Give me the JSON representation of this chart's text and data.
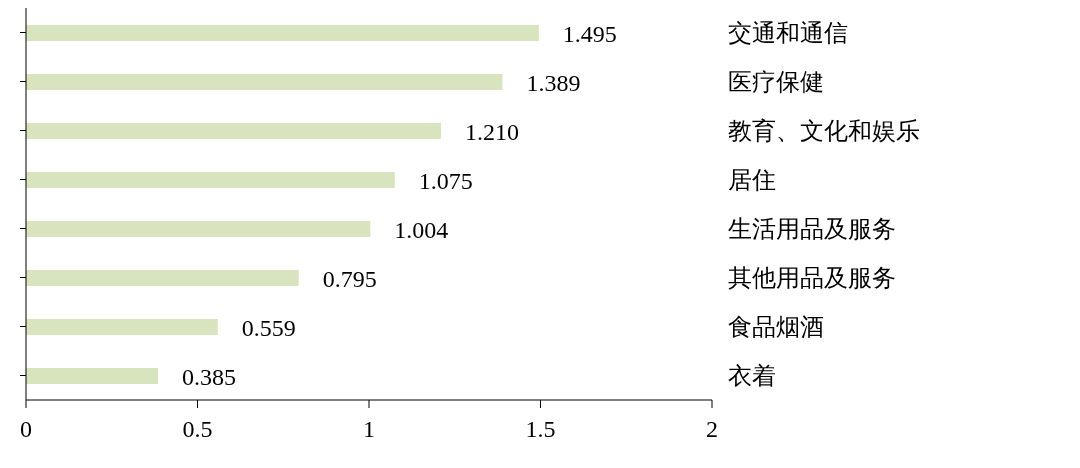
{
  "chart_data": {
    "type": "bar",
    "orientation": "horizontal",
    "categories": [
      "交通和通信",
      "医疗保健",
      "教育、文化和娱乐",
      "居住",
      "生活用品及服务",
      "其他用品及服务",
      "食品烟酒",
      "衣着"
    ],
    "values": [
      1.495,
      1.389,
      1.21,
      1.075,
      1.004,
      0.795,
      0.559,
      0.385
    ],
    "value_labels": [
      "1.495",
      "1.389",
      "1.210",
      "1.075",
      "1.004",
      "0.795",
      "0.559",
      "0.385"
    ],
    "color": "#d7e4bd",
    "xlim": [
      0,
      2
    ],
    "xticks": [
      0,
      0.5,
      1,
      {
        "value": 1.5,
        "label": "1.5"
      },
      2
    ],
    "grid": false
  }
}
